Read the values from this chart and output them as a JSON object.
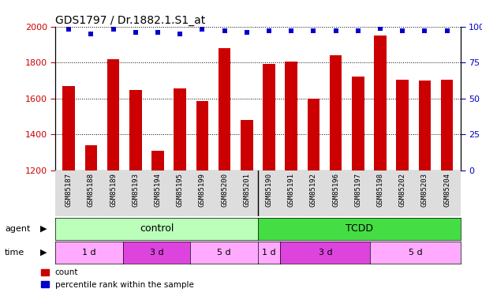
{
  "title": "GDS1797 / Dr.1882.1.S1_at",
  "samples": [
    "GSM85187",
    "GSM85188",
    "GSM85189",
    "GSM85193",
    "GSM85194",
    "GSM85195",
    "GSM85199",
    "GSM85200",
    "GSM85201",
    "GSM85190",
    "GSM85191",
    "GSM85192",
    "GSM85196",
    "GSM85197",
    "GSM85198",
    "GSM85202",
    "GSM85203",
    "GSM85204"
  ],
  "counts": [
    1670,
    1340,
    1820,
    1645,
    1310,
    1655,
    1585,
    1880,
    1480,
    1790,
    1805,
    1600,
    1840,
    1720,
    1950,
    1705,
    1700,
    1705
  ],
  "percentiles": [
    98,
    95,
    98,
    96,
    96,
    95,
    98,
    97,
    96,
    97,
    97,
    97,
    97,
    97,
    99,
    97,
    97,
    97
  ],
  "ylim_left": [
    1200,
    2000
  ],
  "ylim_right": [
    0,
    100
  ],
  "yticks_left": [
    1200,
    1400,
    1600,
    1800,
    2000
  ],
  "yticks_right": [
    0,
    25,
    50,
    75,
    100
  ],
  "bar_color": "#cc0000",
  "dot_color": "#0000cc",
  "agent_control_label": "control",
  "agent_tcdd_label": "TCDD",
  "agent_control_color": "#bbffbb",
  "agent_tcdd_color": "#44dd44",
  "time_1d_color": "#ffaaff",
  "time_3d_color": "#dd44dd",
  "time_5d_color": "#ffaaff",
  "legend_count_label": "count",
  "legend_percentile_label": "percentile rank within the sample",
  "agent_label": "agent",
  "time_label": "time",
  "axis_color_left": "#cc0000",
  "axis_color_right": "#0000cc",
  "n_samples": 18,
  "n_control": 9,
  "n_tcdd": 9,
  "time_groups": [
    {
      "label": "1 d",
      "start": 0,
      "end": 2,
      "color_key": "time_1d_color"
    },
    {
      "label": "3 d",
      "start": 3,
      "end": 5,
      "color_key": "time_3d_color"
    },
    {
      "label": "5 d",
      "start": 6,
      "end": 8,
      "color_key": "time_5d_color"
    },
    {
      "label": "1 d",
      "start": 9,
      "end": 9,
      "color_key": "time_1d_color"
    },
    {
      "label": "3 d",
      "start": 10,
      "end": 13,
      "color_key": "time_3d_color"
    },
    {
      "label": "5 d",
      "start": 14,
      "end": 17,
      "color_key": "time_5d_color"
    }
  ]
}
